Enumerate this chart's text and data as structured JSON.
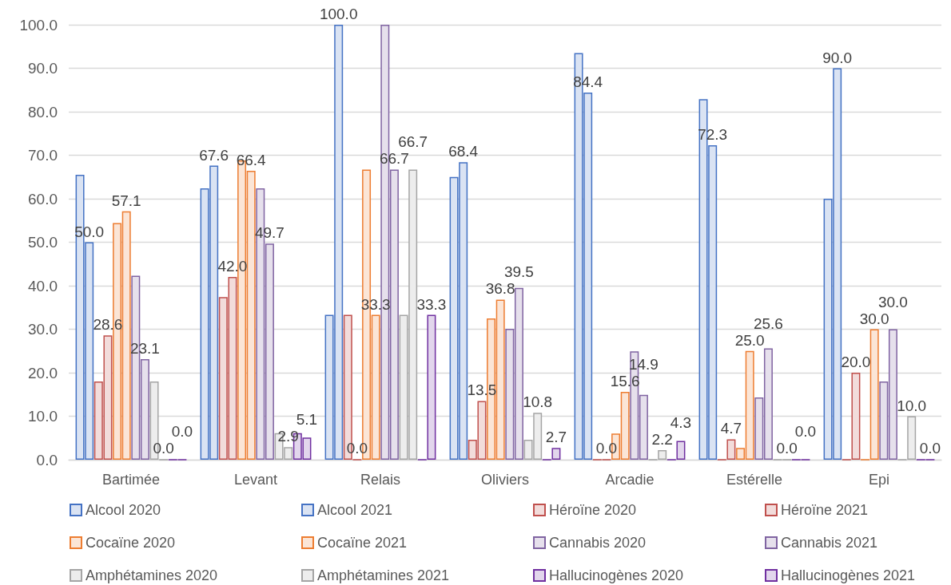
{
  "chart_data": {
    "type": "bar",
    "categories": [
      "Bartimée",
      "Levant",
      "Relais",
      "Oliviers",
      "Arcadie",
      "Estérelle",
      "Epi"
    ],
    "ylim": [
      0,
      100
    ],
    "yticks": [
      {
        "value": 0,
        "label": "0.0"
      },
      {
        "value": 10,
        "label": "10.0"
      },
      {
        "value": 20,
        "label": "20.0"
      },
      {
        "value": 30,
        "label": "30.0"
      },
      {
        "value": 40,
        "label": "40.0"
      },
      {
        "value": 50,
        "label": "50.0"
      },
      {
        "value": 60,
        "label": "60.0"
      },
      {
        "value": 70,
        "label": "70.0"
      },
      {
        "value": 80,
        "label": "80.0"
      },
      {
        "value": 90,
        "label": "90.0"
      },
      {
        "value": 100,
        "label": "100.0"
      }
    ],
    "grid": "y",
    "legend": "bottom",
    "series": [
      {
        "name": "Alcool 2020",
        "color": "#4472c4",
        "values": [
          65.5,
          62.4,
          33.3,
          65.0,
          93.5,
          82.9,
          60.0
        ]
      },
      {
        "name": "Alcool 2021",
        "color": "#4472c4",
        "values": [
          50.0,
          67.6,
          100.0,
          68.4,
          84.4,
          72.3,
          90.0
        ],
        "value_labels": [
          "50.0",
          "67.6",
          "100.0",
          "68.4",
          "84.4",
          "72.3",
          "90.0"
        ]
      },
      {
        "name": "Héroïne 2020",
        "color": "#c0504d",
        "values": [
          18.0,
          37.4,
          33.3,
          4.6,
          0,
          0,
          0
        ]
      },
      {
        "name": "Héroïne 2021",
        "color": "#c0504d",
        "values": [
          28.6,
          42.0,
          0.0,
          13.5,
          0.0,
          4.7,
          20.0
        ],
        "value_labels": [
          "28.6",
          "42.0",
          "0.0",
          "13.5",
          "0.0",
          "4.7",
          "20.0"
        ]
      },
      {
        "name": "Cocaïne 2020",
        "color": "#ed7d31",
        "values": [
          54.4,
          68.8,
          66.7,
          32.5,
          6.0,
          2.7,
          0
        ]
      },
      {
        "name": "Cocaïne 2021",
        "color": "#ed7d31",
        "values": [
          57.1,
          66.4,
          33.3,
          36.8,
          15.6,
          25.0,
          30.0
        ],
        "value_labels": [
          "57.1",
          "66.4",
          "33.3",
          "36.8",
          "15.6",
          "25.0",
          "30.0"
        ]
      },
      {
        "name": "Cannabis 2020",
        "color": "#8064a2",
        "values": [
          42.3,
          62.4,
          100.0,
          30.1,
          24.9,
          14.3,
          18.0
        ]
      },
      {
        "name": "Cannabis 2021",
        "color": "#8064a2",
        "values": [
          23.1,
          49.7,
          66.7,
          39.5,
          14.9,
          25.6,
          30.0
        ],
        "value_labels": [
          "23.1",
          "49.7",
          "66.7",
          "39.5",
          "14.9",
          "25.6",
          "30.0"
        ]
      },
      {
        "name": "Amphétamines 2020",
        "color": "#a5a5a5",
        "values": [
          18.0,
          6.1,
          33.3,
          4.6,
          0,
          0,
          0
        ]
      },
      {
        "name": "Amphétamines 2021",
        "color": "#a5a5a5",
        "values": [
          0.0,
          2.9,
          66.7,
          10.8,
          2.2,
          0.0,
          10.0
        ],
        "value_labels": [
          "0.0",
          "2.9",
          "66.7",
          "10.8",
          "2.2",
          "0.0",
          "10.0"
        ]
      },
      {
        "name": "Hallucinogènes 2020",
        "color": "#7030a0",
        "values": [
          0,
          6.1,
          0,
          0,
          0,
          0,
          0
        ]
      },
      {
        "name": "Hallucinogènes 2021",
        "color": "#7030a0",
        "values": [
          0.0,
          5.1,
          33.3,
          2.7,
          4.3,
          0.0,
          0.0
        ],
        "value_labels": [
          "0.0",
          "5.1",
          "33.3",
          "2.7",
          "4.3",
          "0.0",
          "0.0"
        ]
      }
    ]
  }
}
